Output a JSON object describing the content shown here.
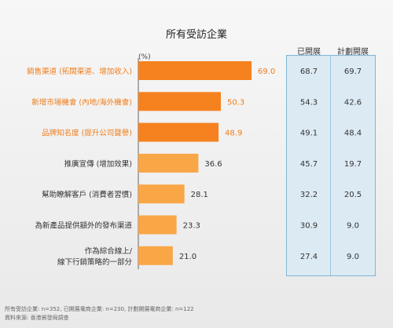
{
  "chart_data": {
    "type": "bar",
    "orientation": "horizontal",
    "title": "所有受訪企業",
    "unit": "(%)",
    "categories": [
      "銷售渠道 (拓闊渠道、增加收入)",
      "新增市場機會 (內地/海外機會)",
      "品牌知名度 (提升公司聲譽)",
      "推廣宣傳 (增加效果)",
      "幫助瞭解客戶 (消費者習慣)",
      "為新產品提供額外的發布渠道",
      "作為綜合線上/\n線下行銷策略的一部分"
    ],
    "values": [
      69.0,
      50.3,
      48.9,
      36.6,
      28.1,
      23.3,
      21.0
    ],
    "value_labels": [
      "69.0",
      "50.3",
      "48.9",
      "36.6",
      "28.1",
      "23.3",
      "21.0"
    ],
    "highlight_count": 3,
    "xlim": [
      0,
      69.0
    ],
    "grid": false,
    "side_columns": [
      {
        "name": "已開展",
        "values": [
          "68.7",
          "54.3",
          "49.1",
          "45.7",
          "32.2",
          "30.9",
          "27.4"
        ]
      },
      {
        "name": "計劃開展",
        "values": [
          "69.7",
          "42.6",
          "48.4",
          "19.7",
          "20.5",
          "9.0",
          "9.0"
        ]
      }
    ]
  },
  "colors": {
    "bar_highlight": "#f5821f",
    "bar_normal": "#f9a647",
    "label_highlight": "#f07d1a",
    "label_normal": "#333333"
  },
  "footer": {
    "line1": "所有受訪企業: n=352, 已開展電商企業: n=230, 計劃開展電商企業: n=122",
    "line2": "資料來源: 香港貿發局調查"
  }
}
